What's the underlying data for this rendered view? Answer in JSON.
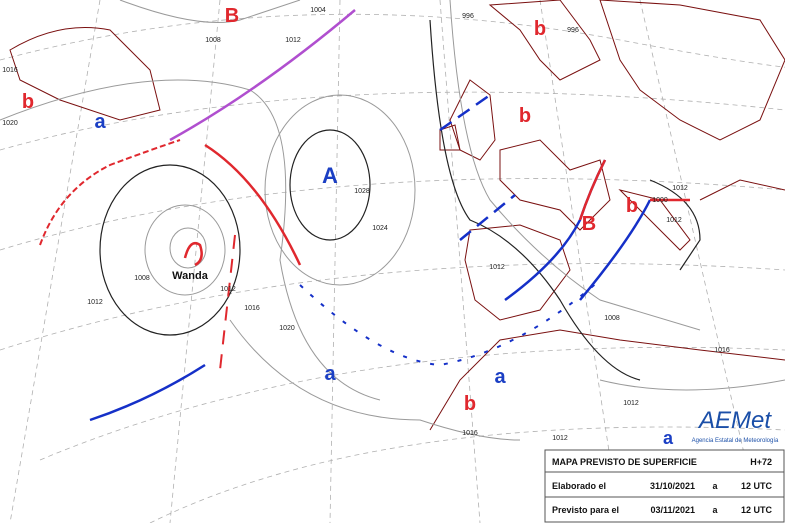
{
  "pressure_centers": [
    {
      "label": "A"
    },
    {
      "label": "B"
    },
    {
      "label": "B"
    },
    {
      "label": "a"
    },
    {
      "label": "a"
    },
    {
      "label": "a"
    },
    {
      "label": "a"
    },
    {
      "label": "b"
    },
    {
      "label": "b"
    },
    {
      "label": "b"
    },
    {
      "label": "b"
    },
    {
      "label": "b"
    }
  ],
  "storm_name": "Wanda",
  "isobar_labels": [
    "1004",
    "1008",
    "1012",
    "1016",
    "1020",
    "1028",
    "1024",
    "1008",
    "1012",
    "1012",
    "1016",
    "1020",
    "1012",
    "1016",
    "1012",
    "1012",
    "1008",
    "1012",
    "996",
    "996",
    "1016",
    "1012",
    "1000"
  ],
  "info_box": {
    "title": "MAPA PREVISTO DE SUPERFICIE",
    "lead": "H+72",
    "rows": [
      [
        "Elaborado el",
        "31/10/2021",
        "a",
        "12 UTC"
      ],
      [
        "Previsto para el",
        "03/11/2021",
        "a",
        "12 UTC"
      ]
    ]
  },
  "logo": {
    "name": "AEMet",
    "subtitle": "Agencia Estatal de Meteorología"
  }
}
